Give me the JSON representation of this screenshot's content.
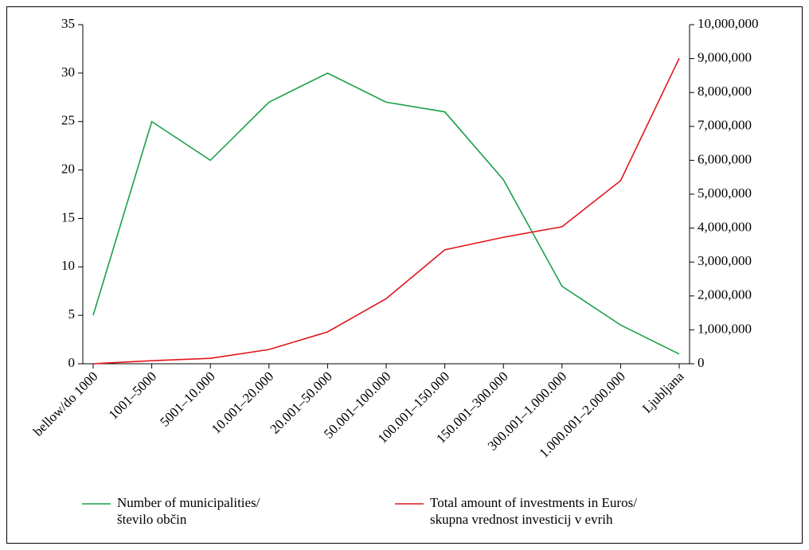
{
  "chart_data": {
    "type": "line",
    "categories": [
      "bellow/do 1000",
      "1001–5000",
      "5001–10.000",
      "10.001–20.000",
      "20.001–50.000",
      "50.001–100.000",
      "100.001–150.000",
      "150.001–300.000",
      "300.001–1.000.000",
      "1.000.001–2.000.000",
      "Ljubljana"
    ],
    "series": [
      {
        "name": "Number of municipalities/\nštevilo občin",
        "color": "#1aa04a",
        "values": [
          5,
          25,
          21,
          27,
          30,
          27,
          26,
          19,
          8,
          4,
          1
        ]
      },
      {
        "name": "Total amount of investments in Euros/\nskupna vrednost investicij v evrih",
        "color": "#e0161c",
        "axis": "y2",
        "values": [
          0,
          90000,
          160000,
          420000,
          940000,
          1920000,
          3360000,
          3730000,
          4040000,
          5400000,
          9010000
        ]
      }
    ],
    "ylim": [
      0,
      35
    ],
    "yticks": [
      0,
      5,
      10,
      15,
      20,
      25,
      30,
      35
    ],
    "y2lim": [
      0,
      10000000
    ],
    "y2ticks": [
      0,
      {
        "value": 1000000,
        "label": "1,000,000"
      },
      {
        "value": 2000000,
        "label": "2,000,000"
      },
      {
        "value": 3000000,
        "label": "3,000,000"
      },
      {
        "value": 4000000,
        "label": "4,000,000"
      },
      {
        "value": 5000000,
        "label": "5,000,000"
      },
      {
        "value": 6000000,
        "label": "6,000,000"
      },
      {
        "value": 7000000,
        "label": "7,000,000"
      },
      {
        "value": 8000000,
        "label": "8,000,000"
      },
      {
        "value": 9000000,
        "label": "9,000,000"
      },
      {
        "value": 10000000,
        "label": "10,000,000"
      }
    ],
    "grid": false,
    "legend": "bottom"
  }
}
